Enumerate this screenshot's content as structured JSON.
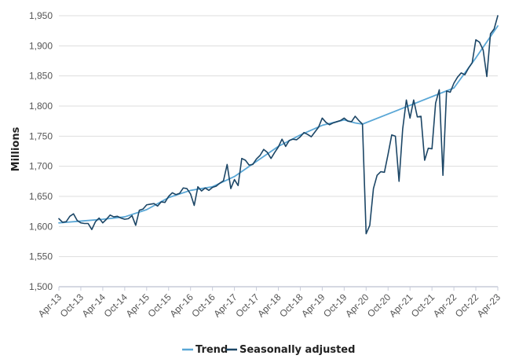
{
  "chart_data": {
    "type": "line",
    "title": "",
    "xlabel": "",
    "ylabel": "Millions",
    "ylim": [
      1500,
      1950
    ],
    "yticks": [
      "1,500",
      "1,550",
      "1,600",
      "1,650",
      "1,700",
      "1,750",
      "1,800",
      "1,850",
      "1,900",
      "1,950"
    ],
    "ytick_values": [
      1500,
      1550,
      1600,
      1650,
      1700,
      1750,
      1800,
      1850,
      1900,
      1950
    ],
    "xticks": [
      "Apr-13",
      "Oct-13",
      "Apr-14",
      "Oct-14",
      "Apr-15",
      "Oct-15",
      "Apr-16",
      "Oct-16",
      "Apr-17",
      "Oct-17",
      "Apr-18",
      "Oct-18",
      "Apr-19",
      "Oct-19",
      "Apr-20",
      "Oct-20",
      "Apr-21",
      "Oct-21",
      "Apr-22",
      "Oct-22",
      "Apr-23"
    ],
    "x_start": "Apr-13",
    "x_end": "Apr-23",
    "grid": "horizontal",
    "legend_position": "bottom-center",
    "series": [
      {
        "name": "Trend",
        "color": "#5aa7d6",
        "points": [
          [
            "Apr-13",
            1606
          ],
          [
            "Oct-13",
            1609
          ],
          [
            "Apr-14",
            1612
          ],
          [
            "Oct-14",
            1616
          ],
          [
            "Apr-15",
            1628
          ],
          [
            "Oct-15",
            1648
          ],
          [
            "Apr-16",
            1660
          ],
          [
            "Oct-16",
            1666
          ],
          [
            "Apr-17",
            1683
          ],
          [
            "Oct-17",
            1708
          ],
          [
            "Apr-18",
            1733
          ],
          [
            "Oct-18",
            1752
          ],
          [
            "Apr-19",
            1768
          ],
          [
            "Oct-19",
            1777
          ],
          [
            "Jan-20",
            1772
          ],
          [
            "Mar-20",
            1770
          ],
          [
            "Apr-22",
            1830
          ],
          [
            "Oct-22",
            1880
          ],
          [
            "Apr-23",
            1933
          ]
        ]
      },
      {
        "name": "Seasonally adjusted",
        "color": "#1c4666",
        "points": [
          [
            "Apr-13",
            1613
          ],
          [
            "May-13",
            1607
          ],
          [
            "Jun-13",
            1608
          ],
          [
            "Jul-13",
            1617
          ],
          [
            "Aug-13",
            1621
          ],
          [
            "Sep-13",
            1610
          ],
          [
            "Oct-13",
            1606
          ],
          [
            "Nov-13",
            1605
          ],
          [
            "Dec-13",
            1605
          ],
          [
            "Jan-14",
            1595
          ],
          [
            "Feb-14",
            1608
          ],
          [
            "Mar-14",
            1614
          ],
          [
            "Apr-14",
            1606
          ],
          [
            "May-14",
            1612
          ],
          [
            "Jun-14",
            1619
          ],
          [
            "Jul-14",
            1616
          ],
          [
            "Aug-14",
            1617
          ],
          [
            "Sep-14",
            1614
          ],
          [
            "Oct-14",
            1612
          ],
          [
            "Nov-14",
            1613
          ],
          [
            "Dec-14",
            1618
          ],
          [
            "Jan-15",
            1602
          ],
          [
            "Feb-15",
            1627
          ],
          [
            "Mar-15",
            1629
          ],
          [
            "Apr-15",
            1636
          ],
          [
            "May-15",
            1637
          ],
          [
            "Jun-15",
            1638
          ],
          [
            "Jul-15",
            1634
          ],
          [
            "Aug-15",
            1641
          ],
          [
            "Sep-15",
            1640
          ],
          [
            "Oct-15",
            1650
          ],
          [
            "Nov-15",
            1656
          ],
          [
            "Dec-15",
            1653
          ],
          [
            "Jan-16",
            1655
          ],
          [
            "Feb-16",
            1664
          ],
          [
            "Mar-16",
            1663
          ],
          [
            "Apr-16",
            1654
          ],
          [
            "May-16",
            1635
          ],
          [
            "Jun-16",
            1666
          ],
          [
            "Jul-16",
            1659
          ],
          [
            "Aug-16",
            1664
          ],
          [
            "Sep-16",
            1660
          ],
          [
            "Oct-16",
            1665
          ],
          [
            "Nov-16",
            1667
          ],
          [
            "Dec-16",
            1672
          ],
          [
            "Jan-17",
            1676
          ],
          [
            "Feb-17",
            1703
          ],
          [
            "Mar-17",
            1663
          ],
          [
            "Apr-17",
            1678
          ],
          [
            "May-17",
            1668
          ],
          [
            "Jun-17",
            1713
          ],
          [
            "Jul-17",
            1710
          ],
          [
            "Aug-17",
            1702
          ],
          [
            "Sep-17",
            1703
          ],
          [
            "Oct-17",
            1712
          ],
          [
            "Nov-17",
            1718
          ],
          [
            "Dec-17",
            1728
          ],
          [
            "Jan-18",
            1723
          ],
          [
            "Feb-18",
            1713
          ],
          [
            "Mar-18",
            1723
          ],
          [
            "Apr-18",
            1732
          ],
          [
            "May-18",
            1745
          ],
          [
            "Jun-18",
            1733
          ],
          [
            "Jul-18",
            1743
          ],
          [
            "Aug-18",
            1745
          ],
          [
            "Sep-18",
            1744
          ],
          [
            "Oct-18",
            1749
          ],
          [
            "Nov-18",
            1756
          ],
          [
            "Dec-18",
            1753
          ],
          [
            "Jan-19",
            1749
          ],
          [
            "Feb-19",
            1757
          ],
          [
            "Mar-19",
            1765
          ],
          [
            "Apr-19",
            1780
          ],
          [
            "May-19",
            1773
          ],
          [
            "Jun-19",
            1769
          ],
          [
            "Jul-19",
            1772
          ],
          [
            "Aug-19",
            1774
          ],
          [
            "Sep-19",
            1776
          ],
          [
            "Oct-19",
            1780
          ],
          [
            "Nov-19",
            1775
          ],
          [
            "Dec-19",
            1774
          ],
          [
            "Jan-20",
            1783
          ],
          [
            "Feb-20",
            1776
          ],
          [
            "Mar-20",
            1770
          ],
          [
            "Apr-20",
            1588
          ],
          [
            "May-20",
            1602
          ],
          [
            "Jun-20",
            1663
          ],
          [
            "Jul-20",
            1685
          ],
          [
            "Aug-20",
            1691
          ],
          [
            "Sep-20",
            1690
          ],
          [
            "Oct-20",
            1720
          ],
          [
            "Nov-20",
            1752
          ],
          [
            "Dec-20",
            1750
          ],
          [
            "Jan-21",
            1675
          ],
          [
            "Feb-21",
            1762
          ],
          [
            "Mar-21",
            1810
          ],
          [
            "Apr-21",
            1780
          ],
          [
            "May-21",
            1810
          ],
          [
            "Jun-21",
            1782
          ],
          [
            "Jul-21",
            1783
          ],
          [
            "Aug-21",
            1710
          ],
          [
            "Sep-21",
            1730
          ],
          [
            "Oct-21",
            1729
          ],
          [
            "Nov-21",
            1805
          ],
          [
            "Dec-21",
            1827
          ],
          [
            "Jan-22",
            1685
          ],
          [
            "Feb-22",
            1825
          ],
          [
            "Mar-22",
            1823
          ],
          [
            "Apr-22",
            1838
          ],
          [
            "May-22",
            1848
          ],
          [
            "Jun-22",
            1855
          ],
          [
            "Jul-22",
            1852
          ],
          [
            "Aug-22",
            1863
          ],
          [
            "Sep-22",
            1872
          ],
          [
            "Oct-22",
            1910
          ],
          [
            "Nov-22",
            1906
          ],
          [
            "Dec-22",
            1893
          ],
          [
            "Jan-23",
            1849
          ],
          [
            "Feb-23",
            1920
          ],
          [
            "Mar-23",
            1928
          ],
          [
            "Apr-23",
            1950
          ]
        ]
      }
    ]
  }
}
